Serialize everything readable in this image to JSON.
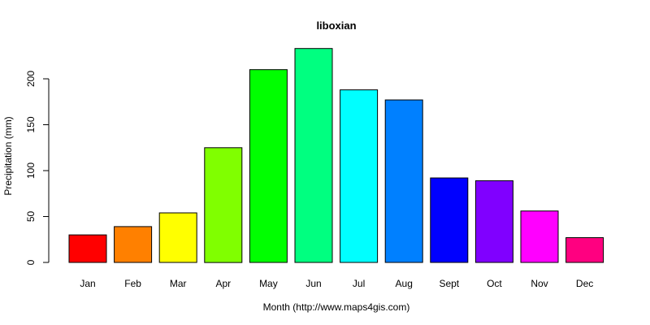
{
  "chart_data": {
    "type": "bar",
    "title": "liboxian",
    "xlabel": "Month (http://www.maps4gis.com)",
    "ylabel": "Precipitation (mm)",
    "categories": [
      "Jan",
      "Feb",
      "Mar",
      "Apr",
      "May",
      "Jun",
      "Jul",
      "Aug",
      "Sept",
      "Oct",
      "Nov",
      "Dec"
    ],
    "values": [
      30,
      39,
      54,
      125,
      210,
      233,
      188,
      177,
      92,
      89,
      56,
      27
    ],
    "colors": [
      "#FF0000",
      "#FF8000",
      "#FFFF00",
      "#80FF00",
      "#00FF00",
      "#00FF80",
      "#00FFFF",
      "#0080FF",
      "#0000FF",
      "#8000FF",
      "#FF00FF",
      "#FF0080"
    ],
    "yticks": [
      0,
      50,
      100,
      150,
      200
    ],
    "ylim": [
      0,
      240
    ],
    "grid": false,
    "legend": "none"
  }
}
